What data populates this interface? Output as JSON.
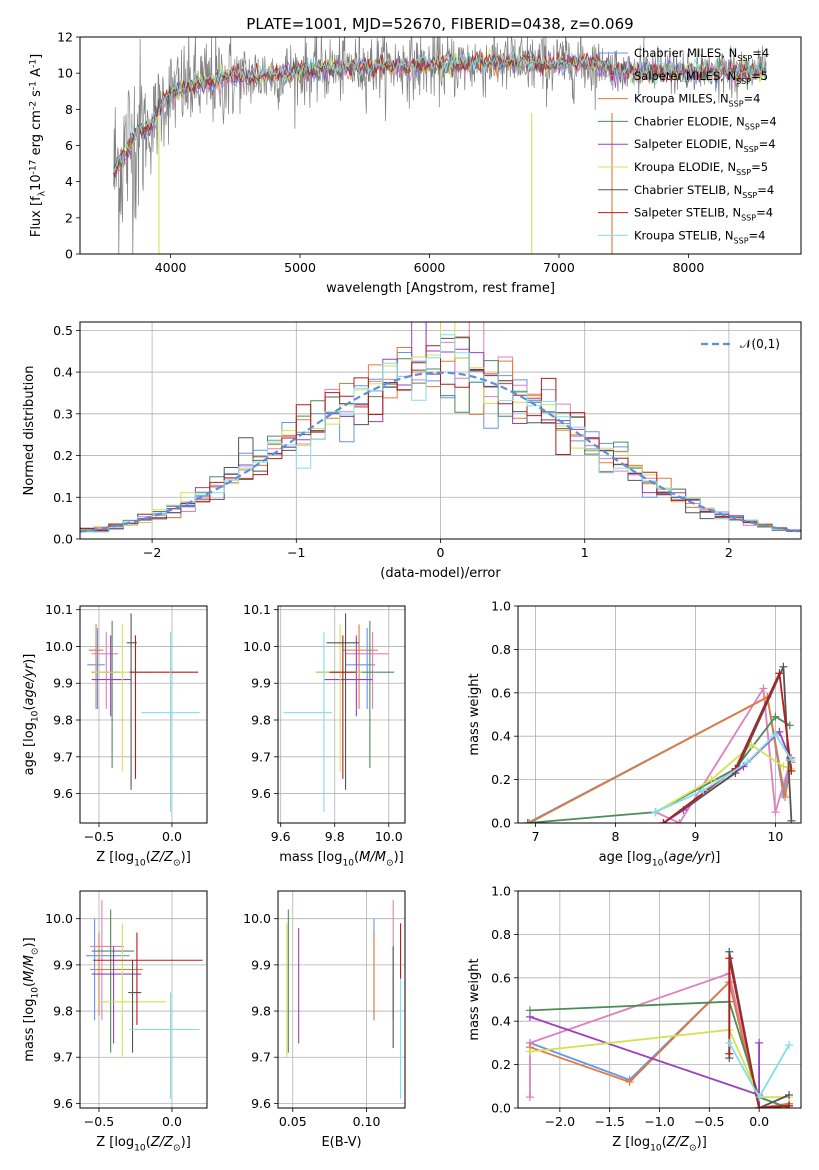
{
  "figure_title": "PLATE=1001, MJD=52670, FIBERID=0438, z=0.069",
  "colors": {
    "Chabrier MILES": "#6495ed",
    "Salpeter MILES": "#e07fc0",
    "Kroupa MILES": "#e07b39",
    "Chabrier ELODIE": "#4f8a5a",
    "Salpeter ELODIE": "#9b3fbf",
    "Kroupa ELODIE": "#d4e157",
    "Chabrier STELIB": "#555555",
    "Salpeter STELIB": "#b81c1c",
    "Kroupa STELIB": "#80deea",
    "data": "#808080",
    "gauss": "#5b8fd9"
  },
  "chart_data": [
    {
      "id": "spectrum",
      "type": "line",
      "title": "PLATE=1001, MJD=52670, FIBERID=0438, z=0.069",
      "xlabel": "wavelength [Angstrom, rest frame]",
      "ylabel": "Flux [f$_\\lambda$10$^{-17}$ erg cm$^{-2}$ s$^{-1}$ A$^{-1}$]",
      "xlim": [
        3300,
        8870
      ],
      "ylim": [
        0,
        12
      ],
      "xticks": [
        4000,
        5000,
        6000,
        7000,
        8000
      ],
      "yticks": [
        0,
        2,
        4,
        6,
        8,
        10,
        12
      ],
      "grid": false,
      "legend_position": "right",
      "legend": [
        {
          "label": "Chabrier MILES, N$_{SSP}$=4",
          "series": "Chabrier MILES"
        },
        {
          "label": "Salpeter MILES, N$_{SSP}$=5",
          "series": "Salpeter MILES"
        },
        {
          "label": "Kroupa MILES, N$_{SSP}$=4",
          "series": "Kroupa MILES"
        },
        {
          "label": "Chabrier ELODIE, N$_{SSP}$=4",
          "series": "Chabrier ELODIE"
        },
        {
          "label": "Salpeter ELODIE, N$_{SSP}$=4",
          "series": "Salpeter ELODIE"
        },
        {
          "label": "Kroupa ELODIE, N$_{SSP}$=5",
          "series": "Kroupa ELODIE"
        },
        {
          "label": "Chabrier STELIB, N$_{SSP}$=4",
          "series": "Chabrier STELIB"
        },
        {
          "label": "Salpeter STELIB, N$_{SSP}$=4",
          "series": "Salpeter STELIB"
        },
        {
          "label": "Kroupa STELIB, N$_{SSP}$=4",
          "series": "Kroupa STELIB"
        }
      ],
      "continuum": {
        "x": [
          3560,
          3650,
          3750,
          3850,
          3950,
          4100,
          4300,
          4500,
          4800,
          5000,
          5300,
          5600,
          6000,
          6300,
          6600,
          6900,
          7200,
          7400
        ],
        "y": [
          4.5,
          5.5,
          6.8,
          7.0,
          8.6,
          9.2,
          9.5,
          9.8,
          9.9,
          10.1,
          10.3,
          10.4,
          10.4,
          10.5,
          10.6,
          10.5,
          10.6,
          10.4
        ]
      },
      "data_noise_amplitude": 0.9,
      "spikes": [
        {
          "x": 3910,
          "ymin": 0
        },
        {
          "x": 6790,
          "ymin": 0
        },
        {
          "x": 7410,
          "ymin": 0
        }
      ]
    },
    {
      "id": "residuals",
      "type": "histogram",
      "xlabel": "(data-model)/error",
      "ylabel": "Normed distribution",
      "xlim": [
        -2.5,
        2.5
      ],
      "ylim": [
        0,
        0.52
      ],
      "xticks": [
        -2,
        -1,
        0,
        1,
        2
      ],
      "yticks": [
        0.0,
        0.1,
        0.2,
        0.3,
        0.4,
        0.5
      ],
      "grid": true,
      "legend_position": "top-right",
      "reference_curve": {
        "label": "$\\mathcal{N}(0,1)$",
        "mean": 0,
        "sigma": 1
      },
      "bin_width": 0.1
    },
    {
      "id": "age_vs_Z",
      "type": "errorbar",
      "xlabel": "Z [log$_{10}$($Z/Z_\\odot$)]",
      "ylabel": "age  [log$_{10}$($age/yr$)]",
      "xlim": [
        -0.63,
        0.24
      ],
      "ylim": [
        9.52,
        10.11
      ],
      "xticks": [
        -0.5,
        0.0
      ],
      "yticks": [
        9.6,
        9.7,
        9.8,
        9.9,
        10.0,
        10.1
      ],
      "grid": true,
      "points": [
        {
          "series": "Chabrier MILES",
          "x": -0.51,
          "y": 9.95,
          "xerr": [
            0.07,
            0.05
          ],
          "yerr": [
            0.12,
            0.1
          ]
        },
        {
          "series": "Salpeter MILES",
          "x": -0.45,
          "y": 9.98,
          "xerr": [
            0.1,
            0.08
          ],
          "yerr": [
            0.15,
            0.06
          ]
        },
        {
          "series": "Kroupa MILES",
          "x": -0.52,
          "y": 9.99,
          "xerr": [
            0.05,
            0.05
          ],
          "yerr": [
            0.16,
            0.07
          ]
        },
        {
          "series": "Chabrier ELODIE",
          "x": -0.41,
          "y": 9.93,
          "xerr": [
            0.14,
            0.06
          ],
          "yerr": [
            0.26,
            0.14
          ]
        },
        {
          "series": "Salpeter ELODIE",
          "x": -0.42,
          "y": 9.91,
          "xerr": [
            0.13,
            0.14
          ],
          "yerr": [
            0.1,
            0.12
          ]
        },
        {
          "series": "Kroupa ELODIE",
          "x": -0.34,
          "y": 9.93,
          "xerr": [
            0.2,
            0.2
          ],
          "yerr": [
            0.27,
            0.13
          ]
        },
        {
          "series": "Chabrier STELIB",
          "x": -0.28,
          "y": 10.01,
          "xerr": [
            0.03,
            0.04
          ],
          "yerr": [
            0.4,
            0.08
          ]
        },
        {
          "series": "Salpeter STELIB",
          "x": -0.25,
          "y": 9.93,
          "xerr": [
            0.04,
            0.43
          ],
          "yerr": [
            0.29,
            0.1
          ]
        },
        {
          "series": "Kroupa STELIB",
          "x": -0.01,
          "y": 9.82,
          "xerr": [
            0.2,
            0.2
          ],
          "yerr": [
            0.27,
            0.22
          ]
        }
      ]
    },
    {
      "id": "age_vs_mass",
      "type": "errorbar",
      "xlabel": "mass [log$_{10}$($M/M_\\odot$)]",
      "ylabel": "",
      "xlim": [
        9.59,
        10.06
      ],
      "ylim": [
        9.52,
        10.11
      ],
      "xticks": [
        9.6,
        9.8,
        10.0
      ],
      "yticks": [
        9.6,
        9.7,
        9.8,
        9.9,
        10.0,
        10.1
      ],
      "grid": true,
      "points": [
        {
          "series": "Chabrier MILES",
          "x": 9.92,
          "y": 9.95,
          "xerr": [
            0.08,
            0.03
          ],
          "yerr": [
            0.12,
            0.1
          ]
        },
        {
          "series": "Salpeter MILES",
          "x": 9.94,
          "y": 9.98,
          "xerr": [
            0.1,
            0.06
          ],
          "yerr": [
            0.15,
            0.06
          ]
        },
        {
          "series": "Kroupa MILES",
          "x": 9.89,
          "y": 9.99,
          "xerr": [
            0.06,
            0.07
          ],
          "yerr": [
            0.16,
            0.07
          ]
        },
        {
          "series": "Chabrier ELODIE",
          "x": 9.93,
          "y": 9.93,
          "xerr": [
            0.2,
            0.09
          ],
          "yerr": [
            0.26,
            0.14
          ]
        },
        {
          "series": "Salpeter ELODIE",
          "x": 9.88,
          "y": 9.91,
          "xerr": [
            0.12,
            0.06
          ],
          "yerr": [
            0.1,
            0.12
          ]
        },
        {
          "series": "Kroupa ELODIE",
          "x": 9.82,
          "y": 9.93,
          "xerr": [
            0.09,
            0.08
          ],
          "yerr": [
            0.27,
            0.13
          ]
        },
        {
          "series": "Chabrier STELIB",
          "x": 9.84,
          "y": 10.01,
          "xerr": [
            0.07,
            0.05
          ],
          "yerr": [
            0.4,
            0.08
          ]
        },
        {
          "series": "Salpeter STELIB",
          "x": 9.83,
          "y": 9.93,
          "xerr": [
            0.05,
            0.05
          ],
          "yerr": [
            0.29,
            0.1
          ]
        },
        {
          "series": "Kroupa STELIB",
          "x": 9.76,
          "y": 9.82,
          "xerr": [
            0.15,
            0.03
          ],
          "yerr": [
            0.27,
            0.22
          ]
        }
      ]
    },
    {
      "id": "weight_vs_age",
      "type": "line",
      "xlabel": "age  [log$_{10}$($age/yr$)]",
      "ylabel": "mass weight",
      "xlim": [
        6.78,
        10.32
      ],
      "ylim": [
        0,
        1.0
      ],
      "xticks": [
        7,
        8,
        9,
        10
      ],
      "yticks": [
        0.0,
        0.2,
        0.4,
        0.6,
        0.8,
        1.0
      ],
      "grid": true,
      "markers": "+",
      "series": [
        {
          "name": "Chabrier MILES",
          "x": [
            6.9,
            9.9,
            10.1,
            10.18
          ],
          "y": [
            0.0,
            0.58,
            0.13,
            0.29
          ]
        },
        {
          "name": "Salpeter MILES",
          "x": [
            8.5,
            8.8,
            9.85,
            10.0,
            10.2
          ],
          "y": [
            0.05,
            0.0,
            0.62,
            0.05,
            0.3
          ]
        },
        {
          "name": "Kroupa MILES",
          "x": [
            6.92,
            9.9,
            10.12,
            10.2
          ],
          "y": [
            0.0,
            0.58,
            0.12,
            0.28
          ]
        },
        {
          "name": "Chabrier ELODIE",
          "x": [
            6.9,
            8.5,
            9.5,
            10.0,
            10.18
          ],
          "y": [
            0.0,
            0.05,
            0.25,
            0.49,
            0.45
          ]
        },
        {
          "name": "Salpeter ELODIE",
          "x": [
            8.6,
            8.85,
            9.6,
            10.05,
            10.18
          ],
          "y": [
            0.0,
            0.06,
            0.26,
            0.42,
            0.3
          ]
        },
        {
          "name": "Kroupa ELODIE",
          "x": [
            8.5,
            9.2,
            9.7,
            10.1,
            10.2
          ],
          "y": [
            0.05,
            0.2,
            0.36,
            0.26,
            0.25
          ]
        },
        {
          "name": "Chabrier STELIB",
          "x": [
            8.6,
            9.5,
            10.1,
            10.2
          ],
          "y": [
            0.0,
            0.23,
            0.72,
            0.01
          ]
        },
        {
          "name": "Salpeter STELIB",
          "x": [
            8.6,
            9.5,
            10.05,
            10.2
          ],
          "y": [
            0.0,
            0.25,
            0.69,
            0.24
          ]
        },
        {
          "name": "Kroupa STELIB",
          "x": [
            8.5,
            9.1,
            9.65,
            10.0,
            10.2
          ],
          "y": [
            0.05,
            0.15,
            0.28,
            0.41,
            0.29
          ]
        }
      ]
    },
    {
      "id": "mass_vs_Z",
      "type": "errorbar",
      "xlabel": "Z [log$_{10}$($Z/Z_\\odot$)]",
      "ylabel": "mass [log$_{10}$($M/M_\\odot$)]",
      "xlim": [
        -0.63,
        0.24
      ],
      "ylim": [
        9.59,
        10.06
      ],
      "xticks": [
        -0.5,
        0.0
      ],
      "yticks": [
        9.6,
        9.7,
        9.8,
        9.9,
        10.0
      ],
      "grid": true,
      "points": [
        {
          "series": "Chabrier MILES",
          "x": -0.53,
          "y": 9.92,
          "xerr": [
            0.06,
            0.24
          ],
          "yerr": [
            0.14,
            0.08
          ]
        },
        {
          "series": "Salpeter MILES",
          "x": -0.48,
          "y": 9.94,
          "xerr": [
            0.08,
            0.15
          ],
          "yerr": [
            0.16,
            0.1
          ]
        },
        {
          "series": "Kroupa MILES",
          "x": -0.5,
          "y": 9.89,
          "xerr": [
            0.06,
            0.3
          ],
          "yerr": [
            0.1,
            0.08
          ]
        },
        {
          "series": "Chabrier ELODIE",
          "x": -0.42,
          "y": 9.93,
          "xerr": [
            0.13,
            0.16
          ],
          "yerr": [
            0.22,
            0.09
          ]
        },
        {
          "series": "Salpeter ELODIE",
          "x": -0.4,
          "y": 9.88,
          "xerr": [
            0.15,
            0.19
          ],
          "yerr": [
            0.15,
            0.06
          ]
        },
        {
          "series": "Kroupa ELODIE",
          "x": -0.34,
          "y": 9.82,
          "xerr": [
            0.16,
            0.3
          ],
          "yerr": [
            0.12,
            0.17
          ]
        },
        {
          "series": "Chabrier STELIB",
          "x": -0.27,
          "y": 9.84,
          "xerr": [
            0.03,
            0.06
          ],
          "yerr": [
            0.13,
            0.07
          ]
        },
        {
          "series": "Salpeter STELIB",
          "x": -0.24,
          "y": 9.91,
          "xerr": [
            0.3,
            0.45
          ],
          "yerr": [
            0.14,
            0.06
          ]
        },
        {
          "series": "Kroupa STELIB",
          "x": -0.01,
          "y": 9.76,
          "xerr": [
            0.28,
            0.2
          ],
          "yerr": [
            0.15,
            0.08
          ]
        }
      ]
    },
    {
      "id": "mass_vs_EBV",
      "type": "errorbar",
      "xlabel": "E(B-V)",
      "ylabel": "",
      "xlim": [
        0.04,
        0.126
      ],
      "ylim": [
        9.59,
        10.06
      ],
      "xticks": [
        0.05,
        0.1
      ],
      "yticks": [
        9.6,
        9.7,
        9.8,
        9.9,
        10.0
      ],
      "grid": true,
      "points": [
        {
          "series": "Chabrier MILES",
          "x": 0.105,
          "y": 9.92,
          "xerr": [
            0,
            0
          ],
          "yerr": [
            0.14,
            0.08
          ]
        },
        {
          "series": "Salpeter MILES",
          "x": 0.118,
          "y": 9.94,
          "xerr": [
            0,
            0
          ],
          "yerr": [
            0.16,
            0.1
          ]
        },
        {
          "series": "Kroupa MILES",
          "x": 0.105,
          "y": 9.89,
          "xerr": [
            0,
            0
          ],
          "yerr": [
            0.11,
            0.08
          ]
        },
        {
          "series": "Chabrier ELODIE",
          "x": 0.047,
          "y": 9.93,
          "xerr": [
            0,
            0
          ],
          "yerr": [
            0.22,
            0.09
          ]
        },
        {
          "series": "Salpeter ELODIE",
          "x": 0.054,
          "y": 9.88,
          "xerr": [
            0,
            0
          ],
          "yerr": [
            0.15,
            0.1
          ]
        },
        {
          "series": "Kroupa ELODIE",
          "x": 0.046,
          "y": 9.82,
          "xerr": [
            0,
            0
          ],
          "yerr": [
            0.12,
            0.17
          ]
        },
        {
          "series": "Chabrier STELIB",
          "x": 0.118,
          "y": 9.84,
          "xerr": [
            0,
            0
          ],
          "yerr": [
            0.12,
            0.1
          ]
        },
        {
          "series": "Salpeter STELIB",
          "x": 0.123,
          "y": 9.91,
          "xerr": [
            0,
            0
          ],
          "yerr": [
            0.04,
            0.08
          ]
        },
        {
          "series": "Kroupa STELIB",
          "x": 0.123,
          "y": 9.76,
          "xerr": [
            0,
            0
          ],
          "yerr": [
            0.15,
            0.11
          ]
        }
      ]
    },
    {
      "id": "weight_vs_Z",
      "type": "line",
      "xlabel": "Z [log$_{10}$($Z/Z_\\odot$)]",
      "ylabel": "mass weight",
      "xlim": [
        -2.42,
        0.42
      ],
      "ylim": [
        0,
        1.0
      ],
      "xticks": [
        -2.0,
        -1.5,
        -1.0,
        -0.5,
        0.0
      ],
      "yticks": [
        0.0,
        0.2,
        0.4,
        0.6,
        0.8,
        1.0
      ],
      "grid": true,
      "markers": "+",
      "series": [
        {
          "name": "Chabrier MILES",
          "x": [
            -2.3,
            -1.3,
            -0.3,
            0.0,
            0.3
          ],
          "y": [
            0.3,
            0.13,
            0.58,
            0.0,
            0.02
          ]
        },
        {
          "name": "Salpeter MILES",
          "x": [
            -2.3,
            -2.3,
            -0.3,
            0.0
          ],
          "y": [
            0.05,
            0.3,
            0.62,
            0.0
          ]
        },
        {
          "name": "Kroupa MILES",
          "x": [
            -2.3,
            -1.3,
            -0.3,
            0.0,
            0.3
          ],
          "y": [
            0.28,
            0.12,
            0.58,
            0.0,
            0.02
          ]
        },
        {
          "name": "Chabrier ELODIE",
          "x": [
            -2.3,
            -0.3,
            0.0,
            0.3
          ],
          "y": [
            0.45,
            0.49,
            0.05,
            0.0
          ]
        },
        {
          "name": "Salpeter ELODIE",
          "x": [
            -2.3,
            0.0,
            0.0,
            0.0,
            0.3
          ],
          "y": [
            0.42,
            0.06,
            0.3,
            0.0,
            0.01
          ]
        },
        {
          "name": "Kroupa ELODIE",
          "x": [
            -2.3,
            -0.3,
            0.0,
            0.3
          ],
          "y": [
            0.26,
            0.36,
            0.05,
            0.05
          ]
        },
        {
          "name": "Chabrier STELIB",
          "x": [
            -0.3,
            -0.3,
            0.0,
            0.3
          ],
          "y": [
            0.23,
            0.72,
            0.0,
            0.06
          ]
        },
        {
          "name": "Salpeter STELIB",
          "x": [
            -0.3,
            -0.3,
            0.0,
            0.3
          ],
          "y": [
            0.25,
            0.69,
            0.0,
            0.01
          ]
        },
        {
          "name": "Kroupa STELIB",
          "x": [
            -0.3,
            0.0,
            0.3
          ],
          "y": [
            0.3,
            0.05,
            0.29
          ]
        }
      ]
    }
  ]
}
